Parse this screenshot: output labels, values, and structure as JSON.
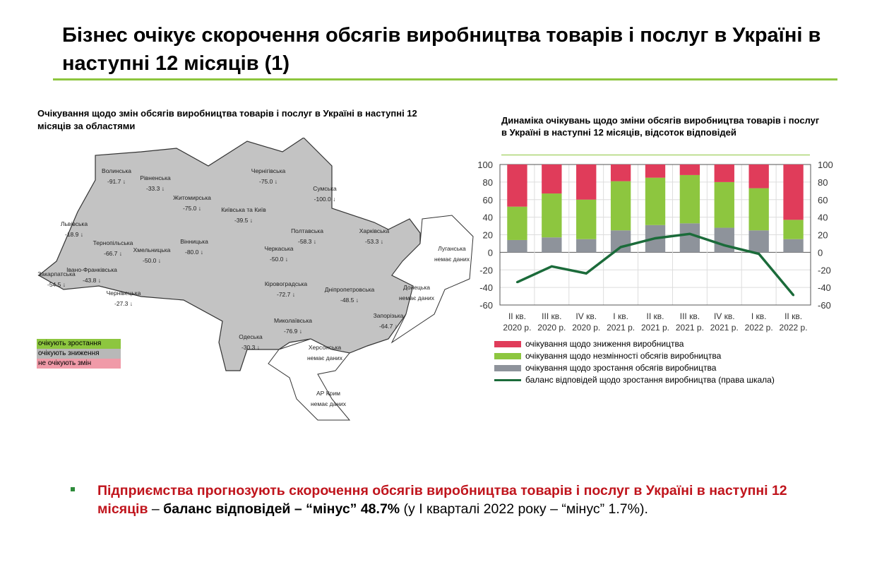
{
  "title": "Бізнес очікує скорочення обсягів виробництва товарів і послуг в Україні в наступні 12 місяців (1)",
  "map": {
    "title": "Очікування щодо змін обсягів виробництва товарів і послуг в Україні в наступні 12 місяців за областями",
    "regions": [
      {
        "name": "Волинська",
        "value": "-91.7"
      },
      {
        "name": "Рівненська",
        "value": "-33.3"
      },
      {
        "name": "Житомирська",
        "value": "-75.0"
      },
      {
        "name": "Чернігівська",
        "value": "-75.0"
      },
      {
        "name": "Сумська",
        "value": "-100.0"
      },
      {
        "name": "Київська та Київ",
        "value": "-39.5"
      },
      {
        "name": "Львівська",
        "value": "-18.9"
      },
      {
        "name": "Тернопільська",
        "value": "-66.7"
      },
      {
        "name": "Хмельницька",
        "value": "-50.0"
      },
      {
        "name": "Вінницька",
        "value": "-80.0"
      },
      {
        "name": "Черкаська",
        "value": "-50.0"
      },
      {
        "name": "Полтавська",
        "value": "-58.3"
      },
      {
        "name": "Харківська",
        "value": "-53.3"
      },
      {
        "name": "Закарпатська",
        "value": "-54.5"
      },
      {
        "name": "Івано-Франківська",
        "value": "-43.8"
      },
      {
        "name": "Чернівецька",
        "value": "-27.3"
      },
      {
        "name": "Кіровоградська",
        "value": "-72.7"
      },
      {
        "name": "Дніпропетровська",
        "value": "-48.5"
      },
      {
        "name": "Миколаївська",
        "value": "-76.9"
      },
      {
        "name": "Одеська",
        "value": "-30.3"
      },
      {
        "name": "Запорізька",
        "value": "-64.7"
      },
      {
        "name": "Луганська",
        "value": "немає даних"
      },
      {
        "name": "Донецька",
        "value": "немає даних"
      },
      {
        "name": "Херсонська",
        "value": "немає даних"
      },
      {
        "name": "АР Крим",
        "value": "немає даних"
      }
    ],
    "legend": [
      {
        "label": "очікують зростання",
        "color": "#8dc63f"
      },
      {
        "label": "очікують зниження",
        "color": "#b8b8b8"
      },
      {
        "label": "не очікують змін",
        "color": "#f09aa8"
      }
    ]
  },
  "chart_data": {
    "type": "bar",
    "title": "Динаміка очікувань щодо зміни обсягів виробництва товарів і послуг в Україні в наступні 12 місяців, відсоток відповідей",
    "categories": [
      [
        "II кв.",
        "2020 р."
      ],
      [
        "III кв.",
        "2020 р."
      ],
      [
        "IV кв.",
        "2020 р."
      ],
      [
        "I кв.",
        "2021 р."
      ],
      [
        "II кв.",
        "2021 р."
      ],
      [
        "III кв.",
        "2021 р."
      ],
      [
        "IV кв.",
        "2021 р."
      ],
      [
        "I кв.",
        "2022 р."
      ],
      [
        "II кв.",
        "2022 р."
      ]
    ],
    "ylim": [
      -60,
      100
    ],
    "yticks": [
      100,
      80,
      60,
      40,
      20,
      0,
      -20,
      -40,
      -60
    ],
    "grid": true,
    "stacked": true,
    "series": [
      {
        "name": "очікування щодо зростання обсягів виробництва",
        "color": "#8e939b",
        "values": [
          14,
          17,
          15,
          25,
          31,
          33,
          28,
          25,
          15
        ]
      },
      {
        "name": "очікування щодо незмінності обсягів виробництва",
        "color": "#8dc63f",
        "values": [
          38,
          50,
          45,
          56,
          54,
          55,
          52,
          48,
          22
        ]
      },
      {
        "name": "очікування щодо зниження виробництва",
        "color": "#e03c5a",
        "values": [
          48,
          33,
          40,
          19,
          15,
          12,
          20,
          27,
          63
        ]
      },
      {
        "name": "баланс відповідей щодо зростання виробництва (права шкала)",
        "type": "line",
        "color": "#1b6b3a",
        "values": [
          -34,
          -16,
          -24,
          6,
          16,
          21,
          8,
          -1.7,
          -48.7
        ]
      }
    ],
    "legend_position": "bottom"
  },
  "bullet": {
    "red": "Підприємства прогнозують скорочення обсягів виробництва товарів і послуг в Україні в наступні 12 місяців",
    "dash": " – ",
    "bold": "баланс відповідей – “мінус” 48.7%",
    "rest": " (у І кварталі 2022 року – “мінус” 1.7%)."
  }
}
